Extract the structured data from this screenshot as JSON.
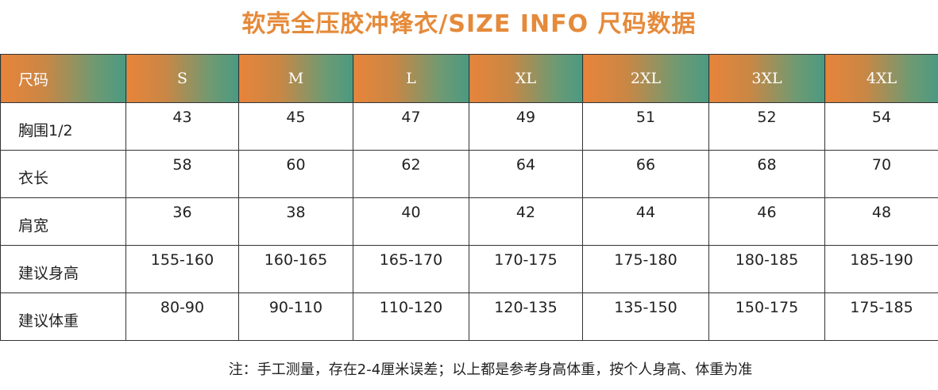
{
  "title": "软壳全压胶冲锋衣/SIZE   INFO 尺码数据",
  "table": {
    "header_label": "尺码",
    "sizes": [
      "S",
      "M",
      "L",
      "XL",
      "2XL",
      "3XL",
      "4XL"
    ],
    "rows": [
      {
        "label": "胸围1/2",
        "values": [
          "43",
          "45",
          "47",
          "49",
          "51",
          "52",
          "54"
        ]
      },
      {
        "label": "衣长",
        "values": [
          "58",
          "60",
          "62",
          "64",
          "66",
          "68",
          "70"
        ]
      },
      {
        "label": "肩宽",
        "values": [
          "36",
          "38",
          "40",
          "42",
          "44",
          "46",
          "48"
        ]
      },
      {
        "label": "建议身高",
        "values": [
          "155-160",
          "160-165",
          "165-170",
          "170-175",
          "175-180",
          "180-185",
          "185-190"
        ]
      },
      {
        "label": "建议体重",
        "values": [
          "80-90",
          "90-110",
          "110-120",
          "120-135",
          "135-150",
          "150-175",
          "175-185"
        ]
      }
    ]
  },
  "note": "注：手工测量，存在2-4厘米误差；以上都是参考身高体重，按个人身高、体重为准",
  "colors": {
    "title": "#e58a3a",
    "header_gradient_start": "#e8843a",
    "header_gradient_end": "#4a9a82"
  }
}
